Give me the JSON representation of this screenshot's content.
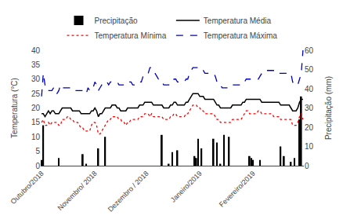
{
  "chart_data": {
    "type": "combo",
    "ylabel": "Temperatura (°C)",
    "y2label": "Precipitação (mm)",
    "categories": [
      "Outubro/2018",
      null,
      null,
      null,
      null,
      null,
      null,
      null,
      null,
      null,
      null,
      null,
      null,
      null,
      null,
      null,
      null,
      null,
      null,
      null,
      null,
      null,
      null,
      null,
      null,
      null,
      null,
      null,
      null,
      null,
      null,
      "Novembro/ 2018",
      null,
      null,
      null,
      null,
      null,
      null,
      null,
      null,
      null,
      null,
      null,
      null,
      null,
      null,
      null,
      null,
      null,
      null,
      null,
      null,
      null,
      null,
      null,
      null,
      null,
      null,
      null,
      null,
      null,
      "Dezembro / 2018",
      null,
      null,
      null,
      null,
      null,
      null,
      null,
      null,
      null,
      null,
      null,
      null,
      null,
      null,
      null,
      null,
      null,
      null,
      null,
      null,
      null,
      null,
      null,
      null,
      null,
      null,
      null,
      null,
      null,
      null,
      "Janeiro/2019",
      null,
      null,
      null,
      null,
      null,
      null,
      null,
      null,
      null,
      null,
      null,
      null,
      null,
      null,
      null,
      null,
      null,
      null,
      null,
      null,
      null,
      null,
      null,
      null,
      null,
      null,
      null,
      null,
      null,
      null,
      "Fevereiro/2019",
      null,
      null,
      null,
      null,
      null,
      null,
      null,
      null,
      null,
      null,
      null,
      null,
      null,
      null,
      null,
      null,
      null,
      null,
      null,
      null,
      null,
      null,
      null,
      null,
      null,
      null,
      null,
      null,
      null
    ],
    "ylim": [
      0,
      40
    ],
    "yticks": [
      0,
      5,
      10,
      15,
      20,
      25,
      30,
      35,
      40
    ],
    "y2lim": [
      0,
      60
    ],
    "y2ticks": [
      0,
      10,
      20,
      30,
      40,
      50,
      60
    ],
    "grid": false,
    "legend": "top",
    "series": [
      {
        "name": "Precipitação",
        "type": "bar",
        "axis": "y2",
        "color": "#000000",
        "values": [
          3,
          21,
          0,
          0,
          0,
          0,
          0,
          0,
          0,
          0,
          4,
          0,
          0,
          0,
          0,
          0,
          0,
          0,
          0,
          0,
          0,
          0,
          0,
          0,
          6,
          0,
          1,
          0,
          0,
          0,
          0,
          0,
          0,
          9,
          0,
          0,
          0,
          15,
          0,
          0,
          0,
          0,
          0,
          0,
          0,
          0,
          0,
          0,
          0,
          0,
          0,
          0,
          0,
          0,
          0,
          0,
          0,
          0,
          0,
          0,
          0,
          0,
          0,
          0,
          0,
          0,
          0,
          0,
          0,
          0,
          16,
          0,
          0,
          0,
          1,
          0,
          7,
          0,
          0,
          8,
          0,
          0,
          0,
          0,
          0,
          0,
          0,
          0,
          0,
          5,
          4,
          14,
          0,
          9,
          0,
          0,
          0,
          0,
          0,
          0,
          14,
          0,
          12,
          0,
          1,
          0,
          16,
          0,
          0,
          15,
          0,
          0,
          0,
          0,
          0,
          0,
          0,
          0,
          0,
          0,
          0,
          5,
          4,
          3,
          0,
          0,
          0,
          3,
          0,
          0,
          0,
          0,
          0,
          0,
          0,
          0,
          0,
          0,
          0,
          10,
          0,
          5,
          0,
          0,
          0,
          2,
          0,
          4,
          0,
          0,
          24,
          36,
          0
        ]
      },
      {
        "name": "Temperatura Média",
        "type": "line",
        "color": "#000000",
        "line_style": "solid",
        "values": [
          18,
          18,
          17,
          18,
          19,
          18,
          19,
          19,
          18,
          18,
          18,
          19,
          20,
          20,
          20,
          20,
          20,
          20,
          19,
          19,
          19,
          19,
          19,
          18,
          18,
          18,
          18,
          18,
          18,
          19,
          19,
          20,
          19,
          17,
          18,
          18,
          19,
          20,
          20,
          20,
          20,
          21,
          21,
          21,
          20,
          20,
          19,
          19,
          19,
          19,
          20,
          20,
          20,
          20,
          20,
          20,
          20,
          21,
          21,
          21,
          22,
          22,
          22,
          22,
          22,
          21,
          21,
          21,
          21,
          21,
          21,
          20,
          20,
          20,
          20,
          21,
          21,
          22,
          22,
          21,
          21,
          21,
          21,
          21,
          22,
          22,
          23,
          24,
          25,
          25,
          25,
          25,
          24,
          24,
          24,
          23,
          23,
          23,
          23,
          23,
          23,
          22,
          21,
          21,
          20,
          20,
          20,
          20,
          20,
          20,
          20,
          21,
          21,
          21,
          21,
          21,
          21,
          22,
          22,
          23,
          23,
          23,
          23,
          23,
          23,
          23,
          23,
          23,
          22,
          22,
          22,
          22,
          22,
          22,
          22,
          22,
          22,
          22,
          22,
          21,
          21,
          21,
          21,
          21,
          21,
          20,
          19,
          19,
          19,
          20,
          22,
          23,
          23
        ]
      },
      {
        "name": "Temperatura Mínima",
        "type": "line",
        "color": "#ff0000",
        "line_style": "dot",
        "values": [
          15,
          16,
          14,
          14,
          15,
          14,
          15,
          15,
          15,
          15,
          14,
          14,
          16,
          16,
          16,
          17,
          17,
          16,
          16,
          15,
          15,
          15,
          14,
          13,
          13,
          12,
          12,
          12,
          12,
          14,
          15,
          15,
          14,
          11,
          11,
          12,
          13,
          14,
          15,
          16,
          16,
          17,
          17,
          17,
          17,
          16,
          16,
          15,
          15,
          14,
          15,
          15,
          16,
          16,
          16,
          16,
          16,
          17,
          17,
          17,
          18,
          18,
          18,
          17,
          18,
          17,
          17,
          17,
          17,
          17,
          17,
          16,
          16,
          16,
          16,
          17,
          17,
          18,
          18,
          17,
          17,
          17,
          17,
          17,
          18,
          18,
          19,
          20,
          21,
          21,
          21,
          20,
          20,
          19,
          19,
          18,
          18,
          18,
          18,
          18,
          18,
          17,
          16,
          16,
          15,
          15,
          15,
          15,
          15,
          15,
          15,
          16,
          16,
          16,
          16,
          16,
          16,
          17,
          18,
          19,
          19,
          18,
          18,
          18,
          18,
          18,
          19,
          19,
          18,
          18,
          18,
          18,
          18,
          18,
          18,
          17,
          17,
          17,
          17,
          16,
          16,
          16,
          16,
          16,
          16,
          16,
          14,
          14,
          14,
          15,
          17,
          18,
          16
        ]
      },
      {
        "name": "Temperatura Máxima",
        "type": "line",
        "color": "#0000bb",
        "line_style": "dash",
        "values": [
          24,
          32,
          28,
          26,
          26,
          26,
          26,
          27,
          25,
          25,
          26,
          28,
          27,
          27,
          27,
          27,
          27,
          27,
          26,
          26,
          26,
          26,
          26,
          26,
          26,
          26,
          25,
          27,
          26,
          27,
          27,
          29,
          28,
          26,
          27,
          28,
          29,
          29,
          29,
          28,
          29,
          29,
          29,
          29,
          29,
          28,
          28,
          28,
          28,
          28,
          29,
          29,
          29,
          28,
          28,
          28,
          28,
          29,
          29,
          31,
          31,
          31,
          32,
          34,
          34,
          33,
          32,
          31,
          30,
          30,
          29,
          28,
          28,
          28,
          28,
          29,
          29,
          30,
          30,
          29,
          29,
          29,
          29,
          29,
          30,
          30,
          32,
          33,
          34,
          34,
          34,
          34,
          33,
          33,
          33,
          32,
          32,
          32,
          32,
          32,
          32,
          31,
          29,
          28,
          28,
          27,
          27,
          27,
          27,
          27,
          28,
          28,
          28,
          28,
          28,
          28,
          28,
          29,
          29,
          30,
          30,
          30,
          30,
          30,
          30,
          30,
          30,
          31,
          32,
          33,
          33,
          33,
          33,
          33,
          33,
          33,
          33,
          32,
          32,
          32,
          32,
          32,
          32,
          32,
          32,
          32,
          29,
          28,
          28,
          28,
          30,
          32,
          40
        ]
      }
    ]
  }
}
